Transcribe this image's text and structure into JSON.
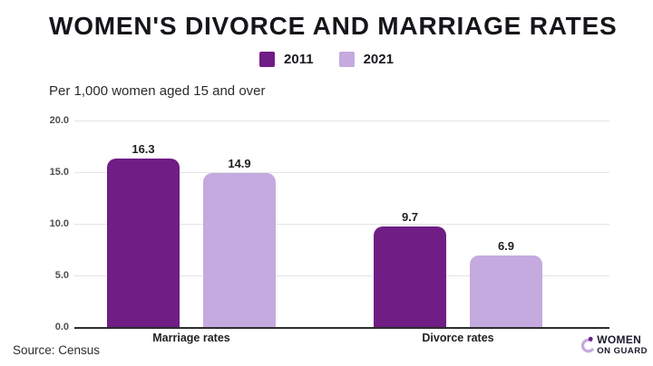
{
  "title": "WOMEN'S DIVORCE AND MARRIAGE RATES",
  "subtitle": "Per 1,000 women aged 15 and over",
  "source": "Source: Census",
  "logo": {
    "line1": "WOMEN",
    "line2": "ON GUARD"
  },
  "colors": {
    "series_2011": "#701d85",
    "series_2021": "#c4aade",
    "gridline": "#e5e3e7",
    "axis_line": "#2d2d2d",
    "text_dark": "#17151a"
  },
  "chart_data": {
    "type": "bar",
    "title": "WOMEN'S DIVORCE AND MARRIAGE RATES",
    "subtitle": "Per 1,000 women aged 15 and over",
    "categories": [
      "Marriage rates",
      "Divorce rates"
    ],
    "series": [
      {
        "name": "2011",
        "color": "#701d85",
        "values": [
          16.3,
          9.7
        ]
      },
      {
        "name": "2021",
        "color": "#c4aade",
        "values": [
          14.9,
          6.9
        ]
      }
    ],
    "value_labels": [
      [
        "16.3",
        "9.7"
      ],
      [
        "14.9",
        "6.9"
      ]
    ],
    "yticks": [
      "20.0",
      "15.0",
      "10.0",
      "5.0",
      "0.0"
    ],
    "ylim": [
      0,
      20
    ],
    "grid": true,
    "legend_position": "top-center",
    "source": "Source: Census"
  }
}
